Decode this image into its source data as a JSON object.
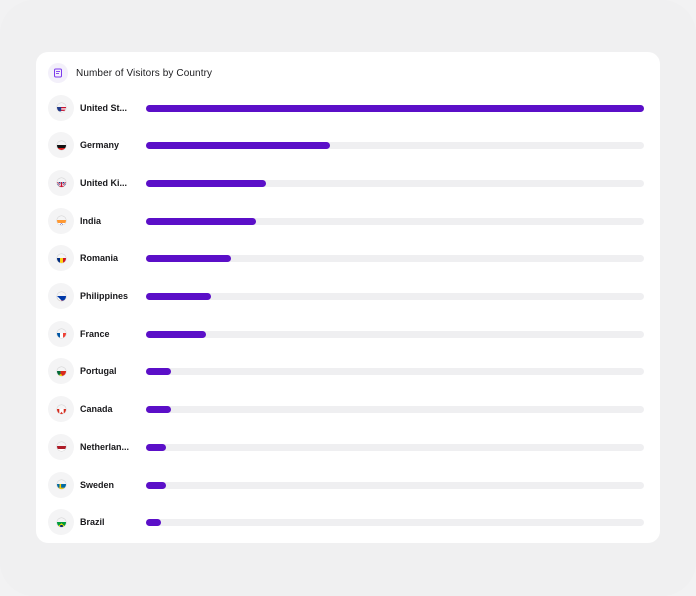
{
  "card": {
    "title": "Number of Visitors by Country",
    "icon": "report-icon"
  },
  "colors": {
    "bar_fill": "#5b0fc8",
    "bar_track": "#efeff1",
    "accent": "#7c3aed"
  },
  "chart_data": {
    "type": "bar",
    "orientation": "horizontal",
    "title": "Number of Visitors by Country",
    "categories": [
      "United St...",
      "Germany",
      "United Ki...",
      "India",
      "Romania",
      "Philippines",
      "France",
      "Portugal",
      "Canada",
      "Netherlan...",
      "Sweden",
      "Brazil"
    ],
    "values": [
      100,
      37,
      24,
      22,
      17,
      13,
      12,
      5,
      5,
      4,
      4,
      3
    ],
    "value_scale": "percent of largest",
    "flags": [
      "us",
      "de",
      "gb",
      "in",
      "ro",
      "ph",
      "fr",
      "pt",
      "ca",
      "nl",
      "se",
      "br"
    ]
  }
}
